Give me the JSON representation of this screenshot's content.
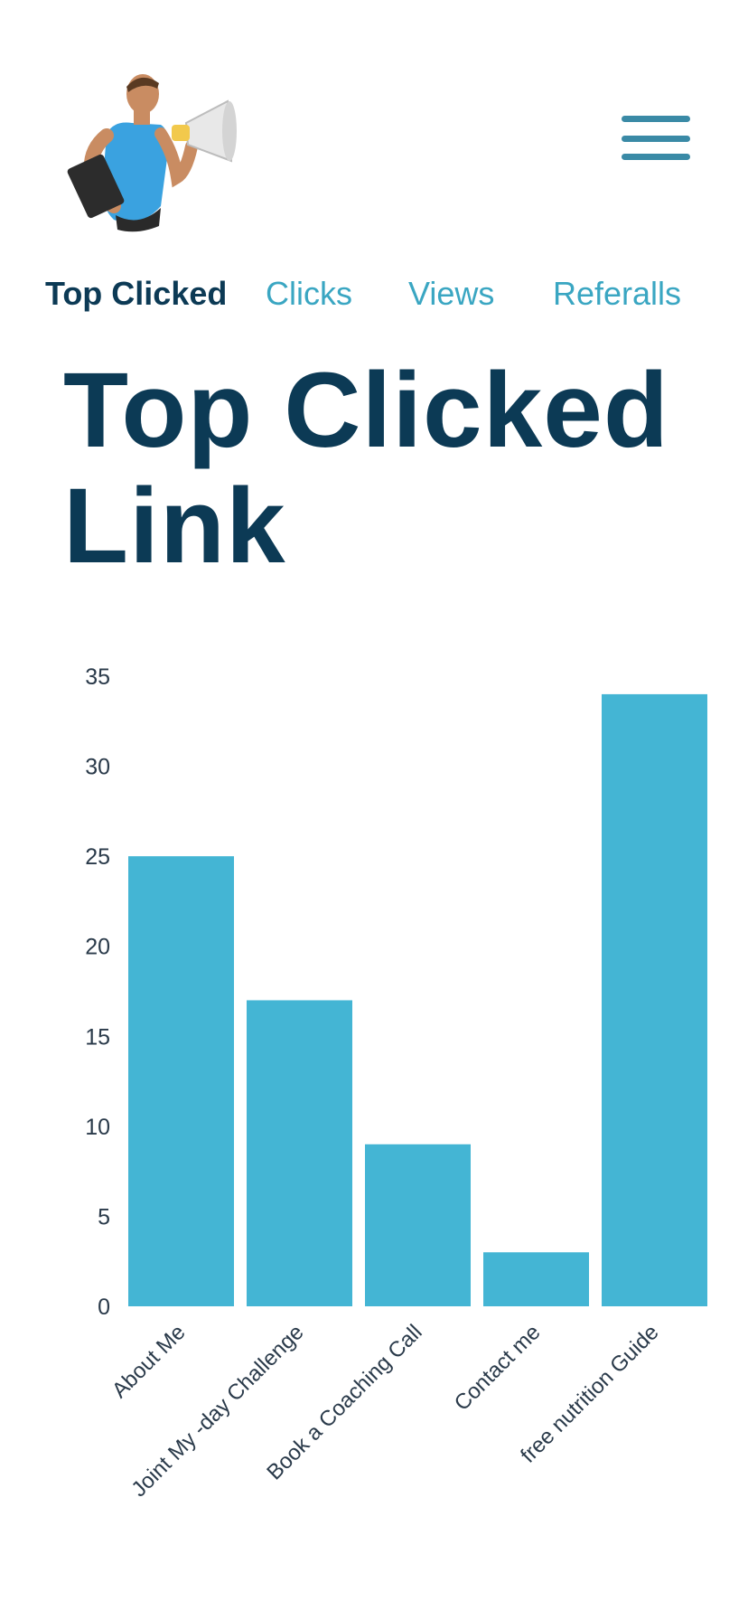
{
  "header": {
    "logo_icon": "man-with-megaphone-icon",
    "menu_icon": "hamburger-menu-icon"
  },
  "tabs": [
    {
      "label": "Top Clicked",
      "active": true
    },
    {
      "label": "Clicks",
      "active": false
    },
    {
      "label": "Views",
      "active": false
    },
    {
      "label": "Referalls",
      "active": false
    }
  ],
  "main": {
    "title": "Top Clicked Link"
  },
  "colors": {
    "bar": "#44b5d4",
    "title": "#0c3a55",
    "tab_inactive": "#3aa6c2",
    "axis_text": "#2a3a4a"
  },
  "chart_data": {
    "type": "bar",
    "categories": [
      "About Me",
      "Joint My -day Challenge",
      "Book a Coaching Call",
      "Contact me",
      "free nutrition Guide"
    ],
    "values": [
      25,
      17,
      9,
      3,
      34
    ],
    "yticks": [
      0,
      5,
      10,
      15,
      20,
      25,
      30,
      35
    ],
    "ylim": [
      0,
      35
    ],
    "title": "",
    "xlabel": "",
    "ylabel": "",
    "grid": false
  }
}
